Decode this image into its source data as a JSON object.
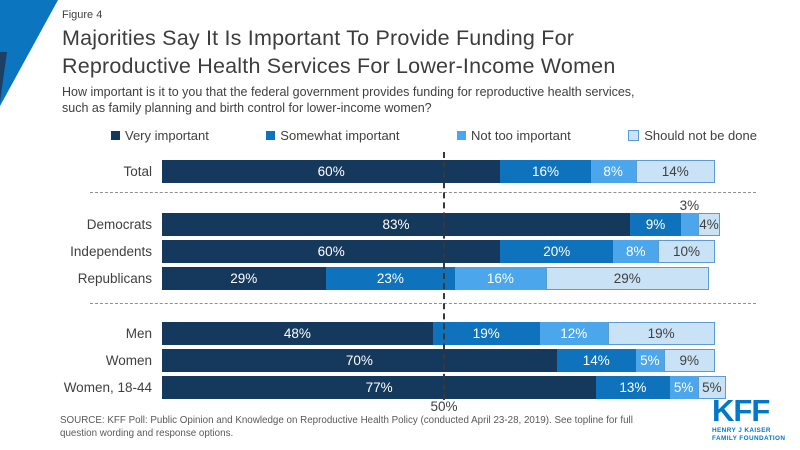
{
  "header": {
    "figure_label": "Figure 4",
    "title_lines": [
      "Majorities Say It Is Important To Provide Funding For",
      "Reproductive Health Services For Lower-Income Women"
    ],
    "subtitle_lines": [
      "How important is it to you that the federal government provides funding for reproductive health services,",
      "such as family planning and birth control for lower-income women?"
    ]
  },
  "chart_data": {
    "type": "bar",
    "orientation": "horizontal-stacked",
    "categories": [
      "Total",
      "Democrats",
      "Independents",
      "Republicans",
      "Men",
      "Women",
      "Women, 18-44"
    ],
    "groups": [
      [
        0
      ],
      [
        1,
        2,
        3
      ],
      [
        4,
        5,
        6
      ]
    ],
    "series": [
      {
        "name": "Very important",
        "color": "#14395C",
        "label_color": "#ffffff",
        "values": [
          60,
          83,
          60,
          29,
          48,
          70,
          77
        ]
      },
      {
        "name": "Somewhat important",
        "color": "#0E72BC",
        "label_color": "#ffffff",
        "values": [
          16,
          9,
          20,
          23,
          19,
          14,
          13
        ]
      },
      {
        "name": "Not too important",
        "color": "#4BA6EB",
        "label_color": "#ffffff",
        "values": [
          8,
          3,
          8,
          16,
          12,
          5,
          5
        ]
      },
      {
        "name": "Should not be done",
        "color": "#C9E2F5",
        "label_color": "#404040",
        "border": "#5B9BD5",
        "values": [
          14,
          4,
          10,
          29,
          19,
          9,
          5
        ]
      }
    ],
    "xlim": [
      0,
      100
    ],
    "value_suffix": "%",
    "min_label_value": 4,
    "reference_line": {
      "value": 50,
      "label": "50%"
    },
    "outside_labels": [
      {
        "category": "Democrats",
        "series": "Not too important",
        "label": "3%"
      }
    ],
    "legend_position": "top",
    "grid": false
  },
  "footer": {
    "source_lines": [
      "SOURCE: KFF Poll: Public Opinion and Knowledge on Reproductive Health Policy (conducted April 23-28, 2019). See topline for full",
      "question wording and response options."
    ]
  },
  "logo": {
    "text": "KFF",
    "subtext_line1": "HENRY J KAISER",
    "subtext_line2": "FAMILY FOUNDATION",
    "color": "#0077C8"
  },
  "decor": {
    "triangle_color": "#0B75C0",
    "triangle_accent_color": "#1C3F63"
  }
}
